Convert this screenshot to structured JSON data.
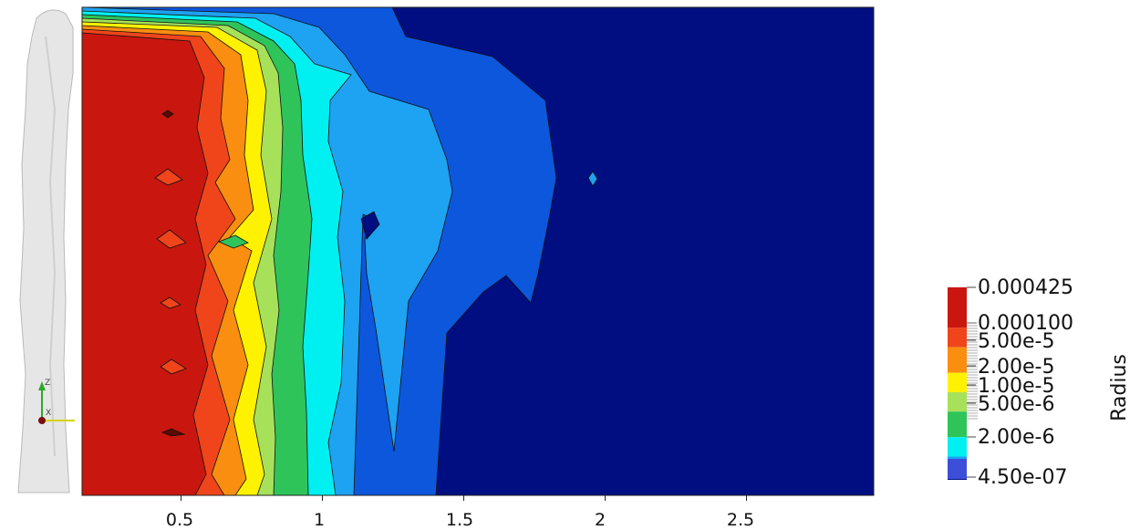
{
  "chart_data": {
    "type": "heatmap",
    "title": "",
    "xlabel": "",
    "ylabel": "",
    "xlim": [
      0.15,
      2.95
    ],
    "x_ticks": [
      {
        "value": 0.5,
        "label": "0.5"
      },
      {
        "value": 1.0,
        "label": "1"
      },
      {
        "value": 1.5,
        "label": "1.5"
      },
      {
        "value": 2.0,
        "label": "2"
      },
      {
        "value": 2.5,
        "label": "2.5"
      }
    ],
    "grid": false,
    "legend": "right",
    "colorbar": {
      "title": "Radius",
      "scale": "log",
      "range": [
        4.5e-07,
        0.000425
      ],
      "labels": [
        {
          "value": 0.000425,
          "label": "0.000425"
        },
        {
          "value": 0.0001,
          "label": "0.000100"
        },
        {
          "value": 5e-05,
          "label": "5.00e-5"
        },
        {
          "value": 2e-05,
          "label": "2.00e-5"
        },
        {
          "value": 1e-05,
          "label": "1.00e-5"
        },
        {
          "value": 5e-06,
          "label": "5.00e-6"
        },
        {
          "value": 2e-06,
          "label": "2.00e-6"
        },
        {
          "value": 4.5e-07,
          "label": "4.50e-07"
        }
      ]
    },
    "contour_levels": [
      {
        "value": 0.000425,
        "color": "#c9170f"
      },
      {
        "value": 0.0001,
        "color": "#f0451b"
      },
      {
        "value": 5e-05,
        "color": "#f98e10"
      },
      {
        "value": 2e-05,
        "color": "#fff200"
      },
      {
        "value": 1e-05,
        "color": "#a7e15a"
      },
      {
        "value": 5e-06,
        "color": "#2ec45a"
      },
      {
        "value": 2e-06,
        "color": "#00f0f2"
      },
      {
        "value": 1e-06,
        "color": "#1ea2f2"
      },
      {
        "value": 7e-07,
        "color": "#0c57dc"
      },
      {
        "value": 4.5e-07,
        "color": "#010e82"
      }
    ]
  },
  "axes_widget": {
    "z_label": "Z",
    "x_label": "X"
  }
}
